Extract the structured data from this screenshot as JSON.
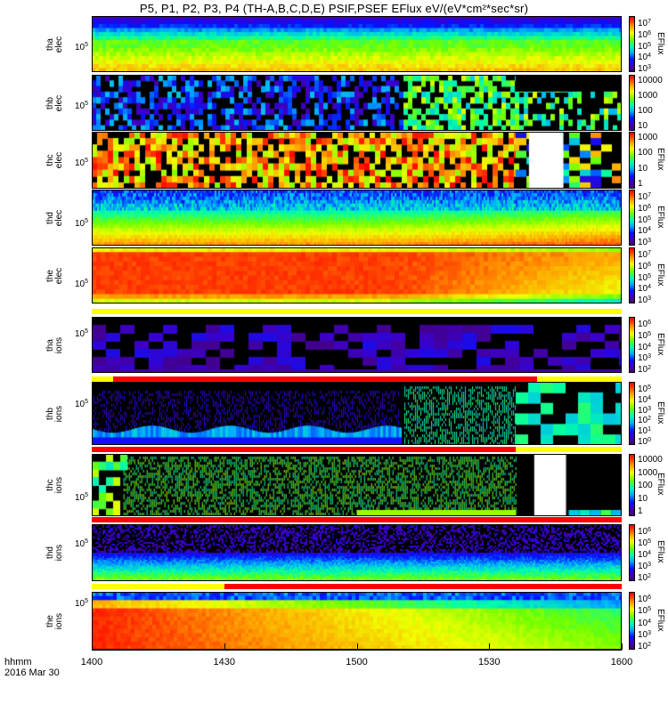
{
  "title": "P5, P1, P2, P3, P4 (TH-A,B,C,D,E) PSIF,PSEF EFlux eV/(eV*cm²*sec*sr)",
  "x_axis": {
    "name": "hhmm",
    "date": "2016 Mar 30",
    "ticks": [
      "1400",
      "1430",
      "1500",
      "1530",
      "1600"
    ]
  },
  "chart_data": [
    {
      "type": "heatmap",
      "probe": "tha",
      "species": "elec",
      "ytick": "10",
      "ytick_exp": "5",
      "colorbar": {
        "label": "EFlux",
        "ticks": [
          [
            "10",
            "7"
          ],
          [
            "10",
            "6"
          ],
          [
            "10",
            "5"
          ],
          [
            "10",
            "4"
          ],
          [
            "10",
            "3"
          ]
        ]
      },
      "style": "tha_elec"
    },
    {
      "type": "heatmap",
      "probe": "thb",
      "species": "elec",
      "ytick": "10",
      "ytick_exp": "5",
      "colorbar": {
        "label": "",
        "ticks": [
          [
            "10000",
            ""
          ],
          [
            "1000",
            ""
          ],
          [
            "100",
            ""
          ],
          [
            "10",
            ""
          ]
        ]
      },
      "style": "thb_elec"
    },
    {
      "type": "heatmap",
      "probe": "thc",
      "species": "elec",
      "ytick": "10",
      "ytick_exp": "5",
      "colorbar": {
        "label": "EFlux",
        "ticks": [
          [
            "1000",
            ""
          ],
          [
            "100",
            ""
          ],
          [
            "10",
            ""
          ],
          [
            "1",
            ""
          ]
        ]
      },
      "style": "thc_elec"
    },
    {
      "type": "heatmap",
      "probe": "thd",
      "species": "elec",
      "ytick": "10",
      "ytick_exp": "5",
      "colorbar": {
        "label": "EFlux",
        "ticks": [
          [
            "10",
            "7"
          ],
          [
            "10",
            "6"
          ],
          [
            "10",
            "5"
          ],
          [
            "10",
            "4"
          ],
          [
            "10",
            "3"
          ]
        ]
      },
      "style": "thd_elec"
    },
    {
      "type": "heatmap",
      "probe": "the",
      "species": "elec",
      "ytick": "10",
      "ytick_exp": "5",
      "colorbar": {
        "label": "EFlux",
        "ticks": [
          [
            "10",
            "7"
          ],
          [
            "10",
            "6"
          ],
          [
            "10",
            "5"
          ],
          [
            "10",
            "4"
          ],
          [
            "10",
            "3"
          ]
        ]
      },
      "style": "the_elec"
    },
    {
      "type": "heatmap",
      "probe": "tha",
      "species": "ions",
      "ytick": "10",
      "ytick_exp": "5",
      "colorbar": {
        "label": "EFlux",
        "ticks": [
          [
            "10",
            "6"
          ],
          [
            "10",
            "5"
          ],
          [
            "10",
            "4"
          ],
          [
            "10",
            "3"
          ],
          [
            "10",
            "2"
          ]
        ]
      },
      "style": "tha_ions"
    },
    {
      "type": "heatmap",
      "probe": "thb",
      "species": "ions",
      "ytick": "10",
      "ytick_exp": "5",
      "colorbar": {
        "label": "EFlux",
        "ticks": [
          [
            "10",
            "5"
          ],
          [
            "10",
            "4"
          ],
          [
            "10",
            "3"
          ],
          [
            "10",
            "2"
          ],
          [
            "10",
            "1"
          ],
          [
            "10",
            "0"
          ]
        ]
      },
      "style": "thb_ions"
    },
    {
      "type": "heatmap",
      "probe": "thc",
      "species": "ions",
      "ytick": "10",
      "ytick_exp": "5",
      "colorbar": {
        "label": "EFlux",
        "ticks": [
          [
            "10000",
            ""
          ],
          [
            "1000",
            ""
          ],
          [
            "100",
            ""
          ],
          [
            "10",
            ""
          ],
          [
            "1",
            ""
          ]
        ]
      },
      "style": "thc_ions"
    },
    {
      "type": "heatmap",
      "probe": "thd",
      "species": "ions",
      "ytick": "10",
      "ytick_exp": "5",
      "colorbar": {
        "label": "EFlux",
        "ticks": [
          [
            "10",
            "6"
          ],
          [
            "10",
            "5"
          ],
          [
            "10",
            "4"
          ],
          [
            "10",
            "3"
          ],
          [
            "10",
            "2"
          ]
        ]
      },
      "style": "thd_ions"
    },
    {
      "type": "heatmap",
      "probe": "the",
      "species": "ions",
      "ytick": "10",
      "ytick_exp": "5",
      "colorbar": {
        "label": "EFlux",
        "ticks": [
          [
            "10",
            "6"
          ],
          [
            "10",
            "5"
          ],
          [
            "10",
            "4"
          ],
          [
            "10",
            "3"
          ],
          [
            "10",
            "2"
          ]
        ]
      },
      "style": "the_ions"
    }
  ],
  "colors": {
    "black": "#000000",
    "yellow": "#ffff00",
    "red": "#ff0000",
    "white": "#ffffff"
  }
}
